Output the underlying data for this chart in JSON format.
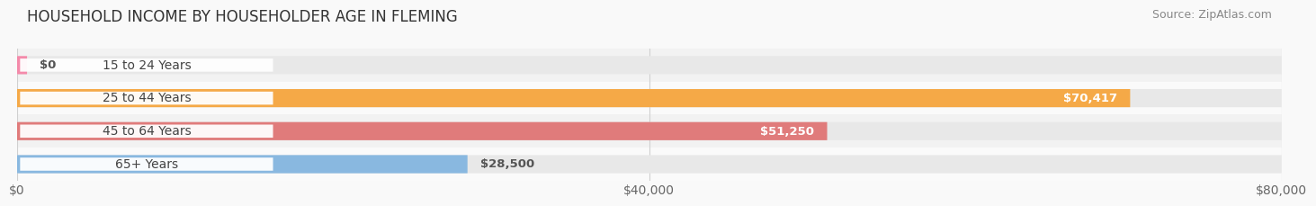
{
  "title": "HOUSEHOLD INCOME BY HOUSEHOLDER AGE IN FLEMING",
  "source": "Source: ZipAtlas.com",
  "categories": [
    "15 to 24 Years",
    "25 to 44 Years",
    "45 to 64 Years",
    "65+ Years"
  ],
  "values": [
    0,
    70417,
    51250,
    28500
  ],
  "bar_colors": [
    "#f48aaa",
    "#f5a947",
    "#e07b7b",
    "#89b8e0"
  ],
  "value_labels": [
    "$0",
    "$70,417",
    "$51,250",
    "$28,500"
  ],
  "xlim": [
    0,
    80000
  ],
  "xticks": [
    0,
    40000,
    80000
  ],
  "xticklabels": [
    "$0",
    "$40,000",
    "$80,000"
  ],
  "title_fontsize": 12,
  "label_fontsize": 10,
  "value_fontsize": 9.5,
  "source_fontsize": 9,
  "background_color": "#f9f9f9",
  "bar_height": 0.55,
  "bar_bg_color": "#e8e8e8",
  "label_box_color": "#ffffff",
  "label_text_color": "#444444",
  "value_label_color_inside": "#ffffff",
  "value_label_color_outside": "#555555",
  "grid_color": "#d0d0d0",
  "row_bg_even": "#f2f2f2",
  "row_bg_odd": "#fafafa"
}
